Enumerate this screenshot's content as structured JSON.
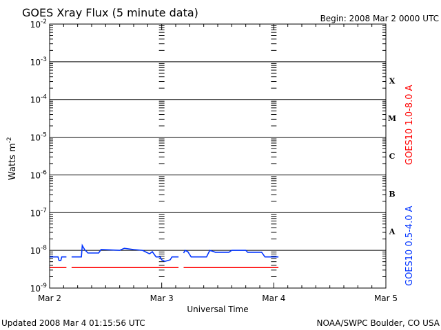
{
  "header": {
    "title": "GOES Xray Flux (5 minute data)",
    "begin": "Begin:  2008 Mar 2 0000 UTC"
  },
  "footer": {
    "updated": "Updated 2008 Mar  4 01:15:56 UTC",
    "source": "NOAA/SWPC Boulder, CO USA"
  },
  "chart_data": {
    "type": "line",
    "title": "GOES Xray Flux (5 minute data)",
    "xlabel": "Universal Time",
    "ylabel": "Watts m",
    "ylabel_sup": "-2",
    "yscale": "log",
    "ylim_exp": [
      -9,
      -2
    ],
    "xlim_hours": [
      0,
      72
    ],
    "x_ticks": [
      {
        "hours": 0,
        "label": "Mar 2"
      },
      {
        "hours": 24,
        "label": "Mar 3"
      },
      {
        "hours": 48,
        "label": "Mar 4"
      },
      {
        "hours": 72,
        "label": "Mar 5"
      }
    ],
    "y_ticks": [
      {
        "exp": -2,
        "base": "10",
        "sup": "-2"
      },
      {
        "exp": -3,
        "base": "10",
        "sup": "-3"
      },
      {
        "exp": -4,
        "base": "10",
        "sup": "-4"
      },
      {
        "exp": -5,
        "base": "10",
        "sup": "-5"
      },
      {
        "exp": -6,
        "base": "10",
        "sup": "-6"
      },
      {
        "exp": -7,
        "base": "10",
        "sup": "-7"
      },
      {
        "exp": -8,
        "base": "10",
        "sup": "-8"
      },
      {
        "exp": -9,
        "base": "10",
        "sup": "-9"
      }
    ],
    "flare_classes": [
      {
        "label": "X",
        "exp": -4
      },
      {
        "label": "M",
        "exp": -5
      },
      {
        "label": "C",
        "exp": -6
      },
      {
        "label": "B",
        "exp": -7
      },
      {
        "label": "A",
        "exp": -8
      }
    ],
    "grid": true,
    "series": [
      {
        "name": "GOES10 1.0-8.0 A",
        "color": "#ff0000",
        "segments": [
          [
            [
              0,
              3.5e-09
            ],
            [
              3.6,
              3.5e-09
            ]
          ],
          [
            [
              4.7,
              3.5e-09
            ],
            [
              27.6,
              3.5e-09
            ]
          ],
          [
            [
              28.7,
              3.5e-09
            ],
            [
              49.0,
              3.5e-09
            ]
          ]
        ]
      },
      {
        "name": "GOES10 0.5-4.0 A",
        "color": "#0033ff",
        "segments": [
          [
            [
              0,
              6.7e-09
            ],
            [
              1.8,
              6.7e-09
            ],
            [
              2.0,
              5.4e-09
            ],
            [
              2.4,
              5.4e-09
            ],
            [
              2.6,
              6.7e-09
            ],
            [
              3.6,
              6.7e-09
            ]
          ],
          [
            [
              4.7,
              6.7e-09
            ],
            [
              6.8,
              6.7e-09
            ],
            [
              7.0,
              1.35e-08
            ],
            [
              7.5,
              1.05e-08
            ],
            [
              8.2,
              8.5e-09
            ],
            [
              10.5,
              8.5e-09
            ],
            [
              11.0,
              1.05e-08
            ],
            [
              15,
              1e-08
            ],
            [
              16,
              1.13e-08
            ],
            [
              18,
              1.05e-08
            ],
            [
              19.9,
              1e-08
            ],
            [
              21.4,
              8.1e-09
            ],
            [
              22.0,
              9.2e-09
            ],
            [
              22.8,
              6.7e-09
            ],
            [
              23.7,
              6.7e-09
            ],
            [
              24.0,
              5.6e-09
            ],
            [
              24.7,
              5.1e-09
            ],
            [
              25.8,
              5.6e-09
            ],
            [
              26.2,
              6.7e-09
            ],
            [
              27.6,
              6.7e-09
            ]
          ],
          [
            [
              28.7,
              8.5e-09
            ],
            [
              29.0,
              1e-08
            ],
            [
              29.6,
              9.2e-09
            ],
            [
              30.3,
              6.7e-09
            ],
            [
              33.6,
              6.7e-09
            ],
            [
              34.3,
              1e-08
            ],
            [
              35.5,
              8.9e-09
            ],
            [
              38.4,
              8.9e-09
            ],
            [
              39.0,
              1e-08
            ],
            [
              42.0,
              1e-08
            ],
            [
              42.4,
              8.9e-09
            ],
            [
              45.4,
              8.9e-09
            ],
            [
              46.1,
              6.7e-09
            ],
            [
              49.0,
              6.7e-09
            ]
          ]
        ]
      }
    ]
  }
}
